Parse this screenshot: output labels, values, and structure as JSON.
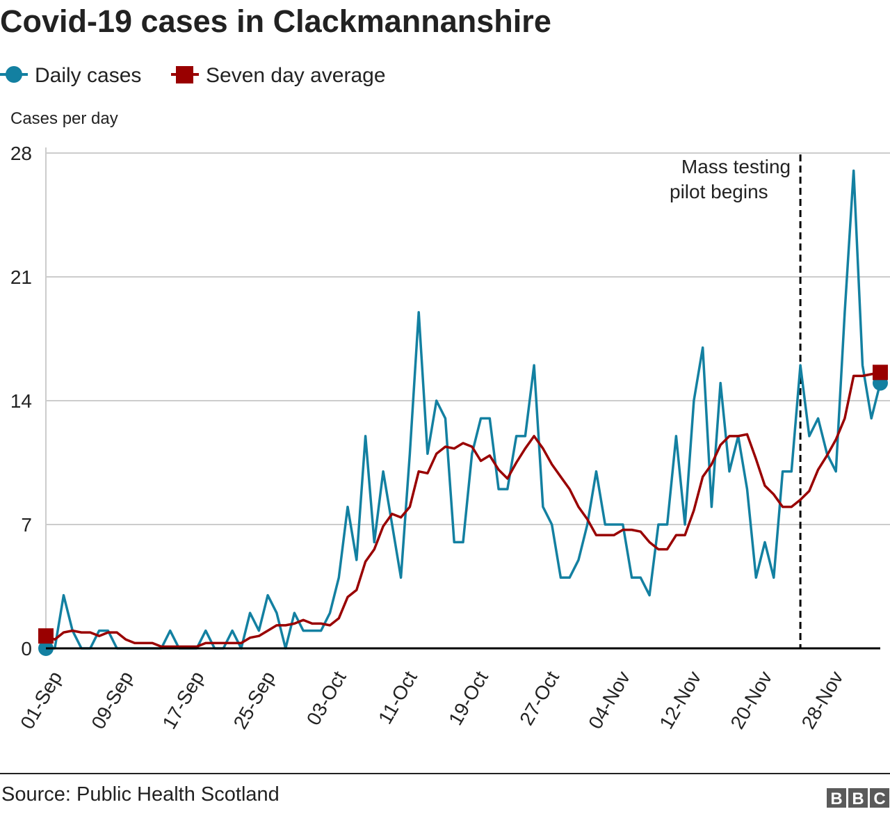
{
  "chart_data": {
    "type": "line",
    "title": "Covid-19 cases in Clackmannanshire",
    "ylabel": "Cases per day",
    "xlabel": "",
    "ylim": [
      0,
      28
    ],
    "yticks": [
      0,
      7,
      14,
      21,
      28
    ],
    "grid": true,
    "legend_placement": "top-left",
    "xtick_labels": [
      "01-Sep",
      "09-Sep",
      "17-Sep",
      "25-Sep",
      "03-Oct",
      "11-Oct",
      "19-Oct",
      "27-Oct",
      "04-Nov",
      "12-Nov",
      "20-Nov",
      "28-Nov"
    ],
    "x": [
      "01-Sep",
      "02-Sep",
      "03-Sep",
      "04-Sep",
      "05-Sep",
      "06-Sep",
      "07-Sep",
      "08-Sep",
      "09-Sep",
      "10-Sep",
      "11-Sep",
      "12-Sep",
      "13-Sep",
      "14-Sep",
      "15-Sep",
      "16-Sep",
      "17-Sep",
      "18-Sep",
      "19-Sep",
      "20-Sep",
      "21-Sep",
      "22-Sep",
      "23-Sep",
      "24-Sep",
      "25-Sep",
      "26-Sep",
      "27-Sep",
      "28-Sep",
      "29-Sep",
      "30-Sep",
      "01-Oct",
      "02-Oct",
      "03-Oct",
      "04-Oct",
      "05-Oct",
      "06-Oct",
      "07-Oct",
      "08-Oct",
      "09-Oct",
      "10-Oct",
      "11-Oct",
      "12-Oct",
      "13-Oct",
      "14-Oct",
      "15-Oct",
      "16-Oct",
      "17-Oct",
      "18-Oct",
      "19-Oct",
      "20-Oct",
      "21-Oct",
      "22-Oct",
      "23-Oct",
      "24-Oct",
      "25-Oct",
      "26-Oct",
      "27-Oct",
      "28-Oct",
      "29-Oct",
      "30-Oct",
      "31-Oct",
      "01-Nov",
      "02-Nov",
      "03-Nov",
      "04-Nov",
      "05-Nov",
      "06-Nov",
      "07-Nov",
      "08-Nov",
      "09-Nov",
      "10-Nov",
      "11-Nov",
      "12-Nov",
      "13-Nov",
      "14-Nov",
      "15-Nov",
      "16-Nov",
      "17-Nov",
      "18-Nov",
      "19-Nov",
      "20-Nov",
      "21-Nov",
      "22-Nov",
      "23-Nov",
      "24-Nov",
      "25-Nov",
      "26-Nov",
      "27-Nov",
      "28-Nov",
      "29-Nov",
      "30-Nov",
      "01-Dec",
      "02-Dec",
      "03-Dec",
      "04-Dec"
    ],
    "series": [
      {
        "name": "Daily cases",
        "color": "#1380A1",
        "marker": "circle",
        "values": [
          0,
          0,
          3,
          1,
          0,
          0,
          1,
          1,
          0,
          0,
          0,
          0,
          0,
          0,
          1,
          0,
          0,
          0,
          1,
          0,
          0,
          1,
          0,
          2,
          1,
          3,
          2,
          0,
          2,
          1,
          1,
          1,
          2,
          4,
          8,
          5,
          12,
          6,
          10,
          7,
          4,
          11,
          19,
          11,
          14,
          13,
          6,
          6,
          11,
          13,
          13,
          9,
          9,
          12,
          12,
          16,
          8,
          7,
          4,
          4,
          5,
          7,
          10,
          7,
          7,
          7,
          4,
          4,
          3,
          7,
          7,
          12,
          7,
          14,
          17,
          8,
          15,
          10,
          12,
          9,
          4,
          6,
          4,
          10,
          10,
          16,
          12,
          13,
          11,
          10,
          19,
          27,
          16,
          13,
          15
        ]
      },
      {
        "name": "Seven day average",
        "color": "#990000",
        "marker": "square",
        "values": [
          0.7,
          0.5,
          0.9,
          1.0,
          0.9,
          0.9,
          0.7,
          0.9,
          0.9,
          0.5,
          0.3,
          0.3,
          0.3,
          0.1,
          0.1,
          0.1,
          0.1,
          0.1,
          0.3,
          0.3,
          0.3,
          0.3,
          0.3,
          0.6,
          0.7,
          1.0,
          1.3,
          1.3,
          1.4,
          1.6,
          1.4,
          1.4,
          1.3,
          1.7,
          2.9,
          3.3,
          4.9,
          5.6,
          6.9,
          7.6,
          7.4,
          8.0,
          10.0,
          9.9,
          11.0,
          11.4,
          11.3,
          11.6,
          11.4,
          10.6,
          10.9,
          10.1,
          9.6,
          10.5,
          11.3,
          12.0,
          11.3,
          10.4,
          9.7,
          9.0,
          8.0,
          7.3,
          6.4,
          6.4,
          6.4,
          6.7,
          6.7,
          6.6,
          6.0,
          5.6,
          5.6,
          6.4,
          6.4,
          7.8,
          9.7,
          10.4,
          11.5,
          12.0,
          12.0,
          12.1,
          10.7,
          9.2,
          8.7,
          8.0,
          8.0,
          8.4,
          8.9,
          10.1,
          10.9,
          11.8,
          13.0,
          15.4,
          15.4,
          15.5,
          15.6
        ]
      }
    ],
    "annotations": [
      {
        "x": "25-Nov",
        "lines": [
          "Mass testing",
          "pilot begins"
        ],
        "style": "dashed-vertical-line"
      }
    ]
  },
  "footer": {
    "source": "Source: Public Health Scotland",
    "logo": "BBC"
  }
}
